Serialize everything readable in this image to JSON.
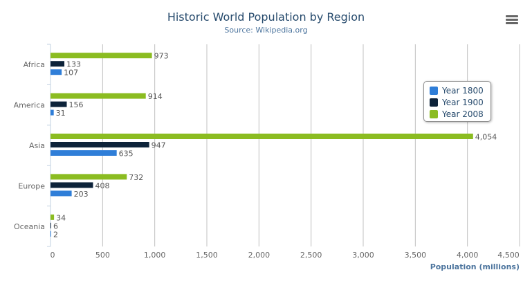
{
  "chart_data": {
    "type": "bar",
    "title": "Historic World Population by Region",
    "subtitle": "Source: Wikipedia.org",
    "categories": [
      "Africa",
      "America",
      "Asia",
      "Europe",
      "Oceania"
    ],
    "series": [
      {
        "name": "Year 1800",
        "color": "#2f7ed8",
        "values": [
          107,
          31,
          635,
          203,
          2
        ]
      },
      {
        "name": "Year 1900",
        "color": "#0d233a",
        "values": [
          133,
          156,
          947,
          408,
          6
        ]
      },
      {
        "name": "Year 2008",
        "color": "#8bbc21",
        "values": [
          973,
          914,
          4054,
          732,
          34
        ]
      }
    ],
    "xlabel": "",
    "ylabel": "Population (millions)",
    "ylim": [
      0,
      4500
    ],
    "ticks": [
      "0",
      "500",
      "1,000",
      "1,500",
      "2,000",
      "2,500",
      "3,000",
      "3,500",
      "4,000",
      "4,500"
    ],
    "data_labels": true,
    "grid": true,
    "legend": "right"
  }
}
